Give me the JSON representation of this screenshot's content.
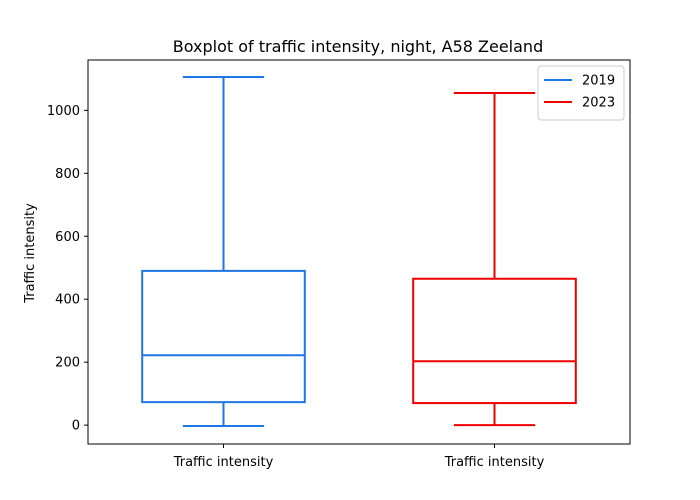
{
  "chart_data": {
    "type": "boxplot",
    "title": "Boxplot of traffic intensity, night, A58 Zeeland",
    "xlabel": "",
    "ylabel": "Traffic intensity",
    "categories": [
      "Traffic intensity",
      "Traffic intensity"
    ],
    "ylim": [
      -60,
      1160
    ],
    "yticks": [
      0,
      200,
      400,
      600,
      800,
      1000
    ],
    "grid": false,
    "legend_position": "top-right",
    "series": [
      {
        "name": "2019",
        "color": "#1f77e4",
        "whisker_low": -3,
        "q1": 73,
        "median": 222,
        "q3": 490,
        "whisker_high": 1106
      },
      {
        "name": "2023",
        "color": "#ee0000",
        "whisker_low": 0,
        "q1": 70,
        "median": 203,
        "q3": 465,
        "whisker_high": 1055
      }
    ]
  }
}
